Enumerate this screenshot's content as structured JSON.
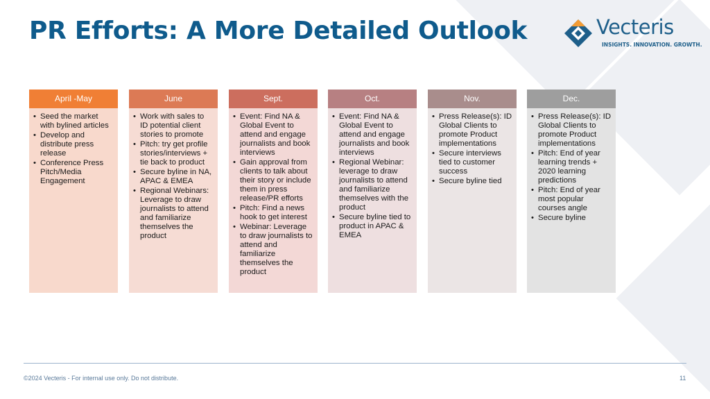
{
  "slide": {
    "title": "PR Efforts: A More Detailed Outlook",
    "page_number": "11",
    "footer": "©2024 Vecteris - For internal use only. Do not distribute."
  },
  "logo": {
    "name": "Vecteris",
    "tagline": "INSIGHTS. INNOVATION. GROWTH.",
    "mark_icon": "diamond-logo-icon"
  },
  "colors": {
    "title": "#0f5b8c",
    "col0_header": "#f07f35",
    "col0_body": "#f8d9cc",
    "col1_header": "#dc7a55",
    "col1_body": "#f6dcd4",
    "col2_header": "#cc6e5e",
    "col2_body": "#f3d8d6",
    "col3_header": "#b78082",
    "col3_body": "#eedfe0",
    "col4_header": "#a98d8c",
    "col4_body": "#ebe5e5",
    "col5_header": "#9e9e9e",
    "col5_body": "#e3e3e3"
  },
  "columns": [
    {
      "header": "April -May",
      "items": [
        "Seed the market with bylined articles",
        "Develop and distribute press release",
        "Conference Press Pitch/Media Engagement"
      ]
    },
    {
      "header": "June",
      "items": [
        "Work with sales to ID potential client stories to promote",
        "Pitch: try get profile stories/interviews + tie back to product",
        "Secure byline in NA, APAC & EMEA",
        "Regional Webinars: Leverage to draw journalists to attend and familiarize themselves the product"
      ]
    },
    {
      "header": "Sept.",
      "items": [
        "Event: Find NA & Global Event to attend and engage journalists and book interviews",
        "Gain approval from clients to talk about their story or include them in press release/PR efforts",
        "Pitch: Find a news hook to get interest",
        "Webinar: Leverage to draw journalists to attend and familiarize themselves the product"
      ]
    },
    {
      "header": "Oct.",
      "items": [
        "Event: Find NA & Global Event to attend and engage journalists and book interviews",
        "Regional Webinar: leverage to draw journalists to attend and familiarize themselves with the product",
        "Secure byline tied to product in APAC & EMEA"
      ]
    },
    {
      "header": "Nov.",
      "items": [
        "Press Release(s): ID Global Clients to promote Product implementations",
        "Secure interviews tied to customer success",
        "Secure byline tied"
      ]
    },
    {
      "header": "Dec.",
      "items": [
        "Press Release(s): ID Global Clients to promote Product implementations",
        "Pitch: End of year learning trends + 2020 learning predictions",
        "Pitch: End of year most popular courses angle",
        "Secure byline"
      ]
    }
  ]
}
